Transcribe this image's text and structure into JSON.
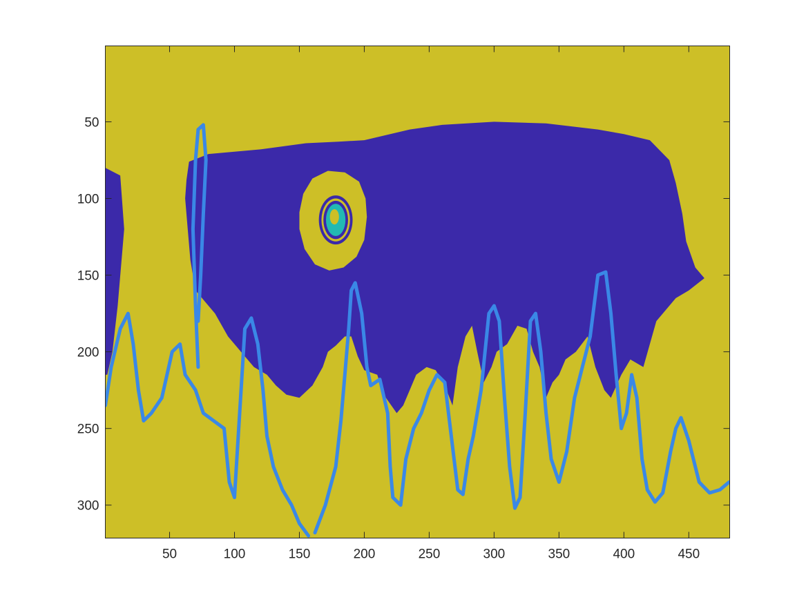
{
  "chart_data": {
    "type": "heatmap",
    "title": "",
    "xlabel": "",
    "ylabel": "",
    "xlim": [
      0.5,
      481.5
    ],
    "ylim": [
      0.5,
      321.5
    ],
    "y_reversed": true,
    "grid": false,
    "legend": "none",
    "x_ticks": [
      50,
      100,
      150,
      200,
      250,
      300,
      350,
      400,
      450
    ],
    "y_ticks": [
      50,
      100,
      150,
      200,
      250,
      300
    ],
    "x_tick_labels": [
      "50",
      "100",
      "150",
      "200",
      "250",
      "300",
      "350",
      "400",
      "450"
    ],
    "y_tick_labels": [
      "50",
      "100",
      "150",
      "200",
      "250",
      "300"
    ],
    "colors": {
      "background_class": "#cdbf27",
      "region_class": "#3b29a9",
      "boundary_class": "#3a88e6",
      "inner_class": "#22b9b3",
      "axes_box": "#262626",
      "tick_text": "#262626"
    },
    "regions": [
      {
        "class": "region_class",
        "outline": [
          [
            65,
            76
          ],
          [
            80,
            71
          ],
          [
            120,
            68
          ],
          [
            155,
            64
          ],
          [
            180,
            63
          ],
          [
            200,
            62
          ],
          [
            235,
            55
          ],
          [
            260,
            52
          ],
          [
            300,
            50
          ],
          [
            340,
            51
          ],
          [
            380,
            55
          ],
          [
            400,
            58
          ],
          [
            420,
            62
          ],
          [
            435,
            75
          ],
          [
            440,
            90
          ],
          [
            445,
            110
          ],
          [
            448,
            128
          ],
          [
            455,
            145
          ],
          [
            462,
            152
          ],
          [
            450,
            160
          ],
          [
            440,
            165
          ],
          [
            425,
            180
          ],
          [
            420,
            195
          ],
          [
            415,
            210
          ],
          [
            405,
            205
          ],
          [
            398,
            215
          ],
          [
            390,
            230
          ],
          [
            385,
            225
          ],
          [
            378,
            210
          ],
          [
            372,
            190
          ],
          [
            363,
            200
          ],
          [
            355,
            205
          ],
          [
            350,
            215
          ],
          [
            345,
            220
          ],
          [
            340,
            230
          ],
          [
            335,
            210
          ],
          [
            330,
            200
          ],
          [
            325,
            185
          ],
          [
            318,
            183
          ],
          [
            310,
            195
          ],
          [
            302,
            200
          ],
          [
            298,
            210
          ],
          [
            292,
            220
          ],
          [
            287,
            200
          ],
          [
            283,
            183
          ],
          [
            278,
            190
          ],
          [
            272,
            210
          ],
          [
            268,
            235
          ],
          [
            262,
            222
          ],
          [
            255,
            212
          ],
          [
            248,
            210
          ],
          [
            240,
            215
          ],
          [
            235,
            225
          ],
          [
            230,
            235
          ],
          [
            225,
            240
          ],
          [
            215,
            228
          ],
          [
            210,
            215
          ],
          [
            200,
            212
          ],
          [
            195,
            203
          ],
          [
            190,
            190
          ],
          [
            185,
            190
          ],
          [
            178,
            196
          ],
          [
            172,
            200
          ],
          [
            168,
            210
          ],
          [
            160,
            222
          ],
          [
            150,
            230
          ],
          [
            140,
            228
          ],
          [
            132,
            222
          ],
          [
            125,
            215
          ],
          [
            115,
            210
          ],
          [
            105,
            200
          ],
          [
            95,
            190
          ],
          [
            85,
            175
          ],
          [
            70,
            160
          ],
          [
            66,
            140
          ],
          [
            64,
            120
          ],
          [
            62,
            100
          ],
          [
            63,
            88
          ]
        ]
      },
      {
        "class": "region_class",
        "outline": [
          [
            0.5,
            80
          ],
          [
            12,
            85
          ],
          [
            15,
            120
          ],
          [
            10,
            170
          ],
          [
            6,
            200
          ],
          [
            2,
            215
          ],
          [
            0.5,
            215
          ]
        ]
      },
      {
        "class": "background_class",
        "outline": [
          [
            150,
            109
          ],
          [
            153,
            97
          ],
          [
            160,
            87
          ],
          [
            172,
            82
          ],
          [
            185,
            83
          ],
          [
            196,
            89
          ],
          [
            201,
            100
          ],
          [
            202,
            112
          ],
          [
            200,
            127
          ],
          [
            194,
            138
          ],
          [
            184,
            145
          ],
          [
            173,
            147
          ],
          [
            162,
            143
          ],
          [
            154,
            133
          ],
          [
            150,
            120
          ]
        ]
      }
    ],
    "blobs": [
      {
        "class": "region_class",
        "cx": 178,
        "cy": 114,
        "rx": 13,
        "ry": 16
      },
      {
        "class": "background_class",
        "cx": 178,
        "cy": 114,
        "rx": 11,
        "ry": 14
      },
      {
        "class": "region_class",
        "cx": 178,
        "cy": 114,
        "rx": 9.5,
        "ry": 12.5
      },
      {
        "class": "inner_class",
        "cx": 178,
        "cy": 114,
        "rx": 7.5,
        "ry": 10.5
      },
      {
        "class": "background_class",
        "cx": 177,
        "cy": 112,
        "rx": 3.5,
        "ry": 5
      }
    ],
    "contours": [
      {
        "class": "boundary_class",
        "points": [
          [
            0.5,
            235
          ],
          [
            5,
            210
          ],
          [
            12,
            185
          ],
          [
            18,
            175
          ],
          [
            22,
            195
          ],
          [
            26,
            225
          ],
          [
            30,
            245
          ],
          [
            36,
            240
          ],
          [
            44,
            230
          ],
          [
            52,
            200
          ],
          [
            58,
            195
          ],
          [
            62,
            215
          ],
          [
            70,
            225
          ],
          [
            76,
            240
          ],
          [
            84,
            245
          ],
          [
            92,
            250
          ],
          [
            96,
            285
          ],
          [
            100,
            295
          ],
          [
            104,
            240
          ],
          [
            108,
            185
          ],
          [
            113,
            178
          ],
          [
            118,
            195
          ],
          [
            122,
            225
          ],
          [
            125,
            255
          ],
          [
            130,
            275
          ],
          [
            137,
            290
          ],
          [
            144,
            300
          ],
          [
            150,
            312
          ],
          [
            157,
            320
          ]
        ]
      },
      {
        "class": "boundary_class",
        "points": [
          [
            72,
            210
          ],
          [
            70,
            170
          ],
          [
            68,
            120
          ],
          [
            70,
            75
          ],
          [
            72,
            55
          ],
          [
            76,
            52
          ],
          [
            78,
            75
          ],
          [
            76,
            110
          ],
          [
            74,
            150
          ],
          [
            72,
            180
          ]
        ]
      },
      {
        "class": "boundary_class",
        "points": [
          [
            162,
            318
          ],
          [
            170,
            300
          ],
          [
            178,
            275
          ],
          [
            182,
            245
          ],
          [
            185,
            215
          ],
          [
            188,
            185
          ],
          [
            190,
            160
          ],
          [
            193,
            155
          ],
          [
            198,
            175
          ],
          [
            202,
            210
          ],
          [
            205,
            222
          ],
          [
            212,
            218
          ],
          [
            218,
            240
          ],
          [
            220,
            275
          ],
          [
            222,
            295
          ],
          [
            228,
            300
          ],
          [
            232,
            270
          ],
          [
            238,
            250
          ],
          [
            244,
            240
          ],
          [
            250,
            225
          ],
          [
            256,
            215
          ],
          [
            262,
            220
          ],
          [
            267,
            255
          ],
          [
            272,
            290
          ],
          [
            276,
            293
          ],
          [
            280,
            270
          ],
          [
            284,
            255
          ],
          [
            290,
            225
          ],
          [
            296,
            175
          ],
          [
            300,
            170
          ],
          [
            304,
            180
          ],
          [
            308,
            230
          ],
          [
            312,
            275
          ],
          [
            316,
            302
          ],
          [
            320,
            295
          ],
          [
            324,
            240
          ],
          [
            328,
            180
          ],
          [
            332,
            175
          ],
          [
            336,
            200
          ],
          [
            340,
            240
          ],
          [
            344,
            270
          ],
          [
            350,
            285
          ],
          [
            356,
            265
          ],
          [
            362,
            230
          ],
          [
            368,
            210
          ],
          [
            374,
            190
          ],
          [
            380,
            150
          ],
          [
            386,
            148
          ],
          [
            390,
            175
          ],
          [
            394,
            215
          ],
          [
            398,
            250
          ],
          [
            402,
            240
          ],
          [
            406,
            215
          ],
          [
            410,
            230
          ],
          [
            414,
            270
          ],
          [
            418,
            290
          ],
          [
            424,
            298
          ],
          [
            430,
            292
          ],
          [
            436,
            265
          ],
          [
            440,
            250
          ],
          [
            444,
            243
          ],
          [
            450,
            258
          ],
          [
            458,
            285
          ],
          [
            466,
            292
          ],
          [
            474,
            290
          ],
          [
            481,
            285
          ]
        ]
      }
    ]
  }
}
